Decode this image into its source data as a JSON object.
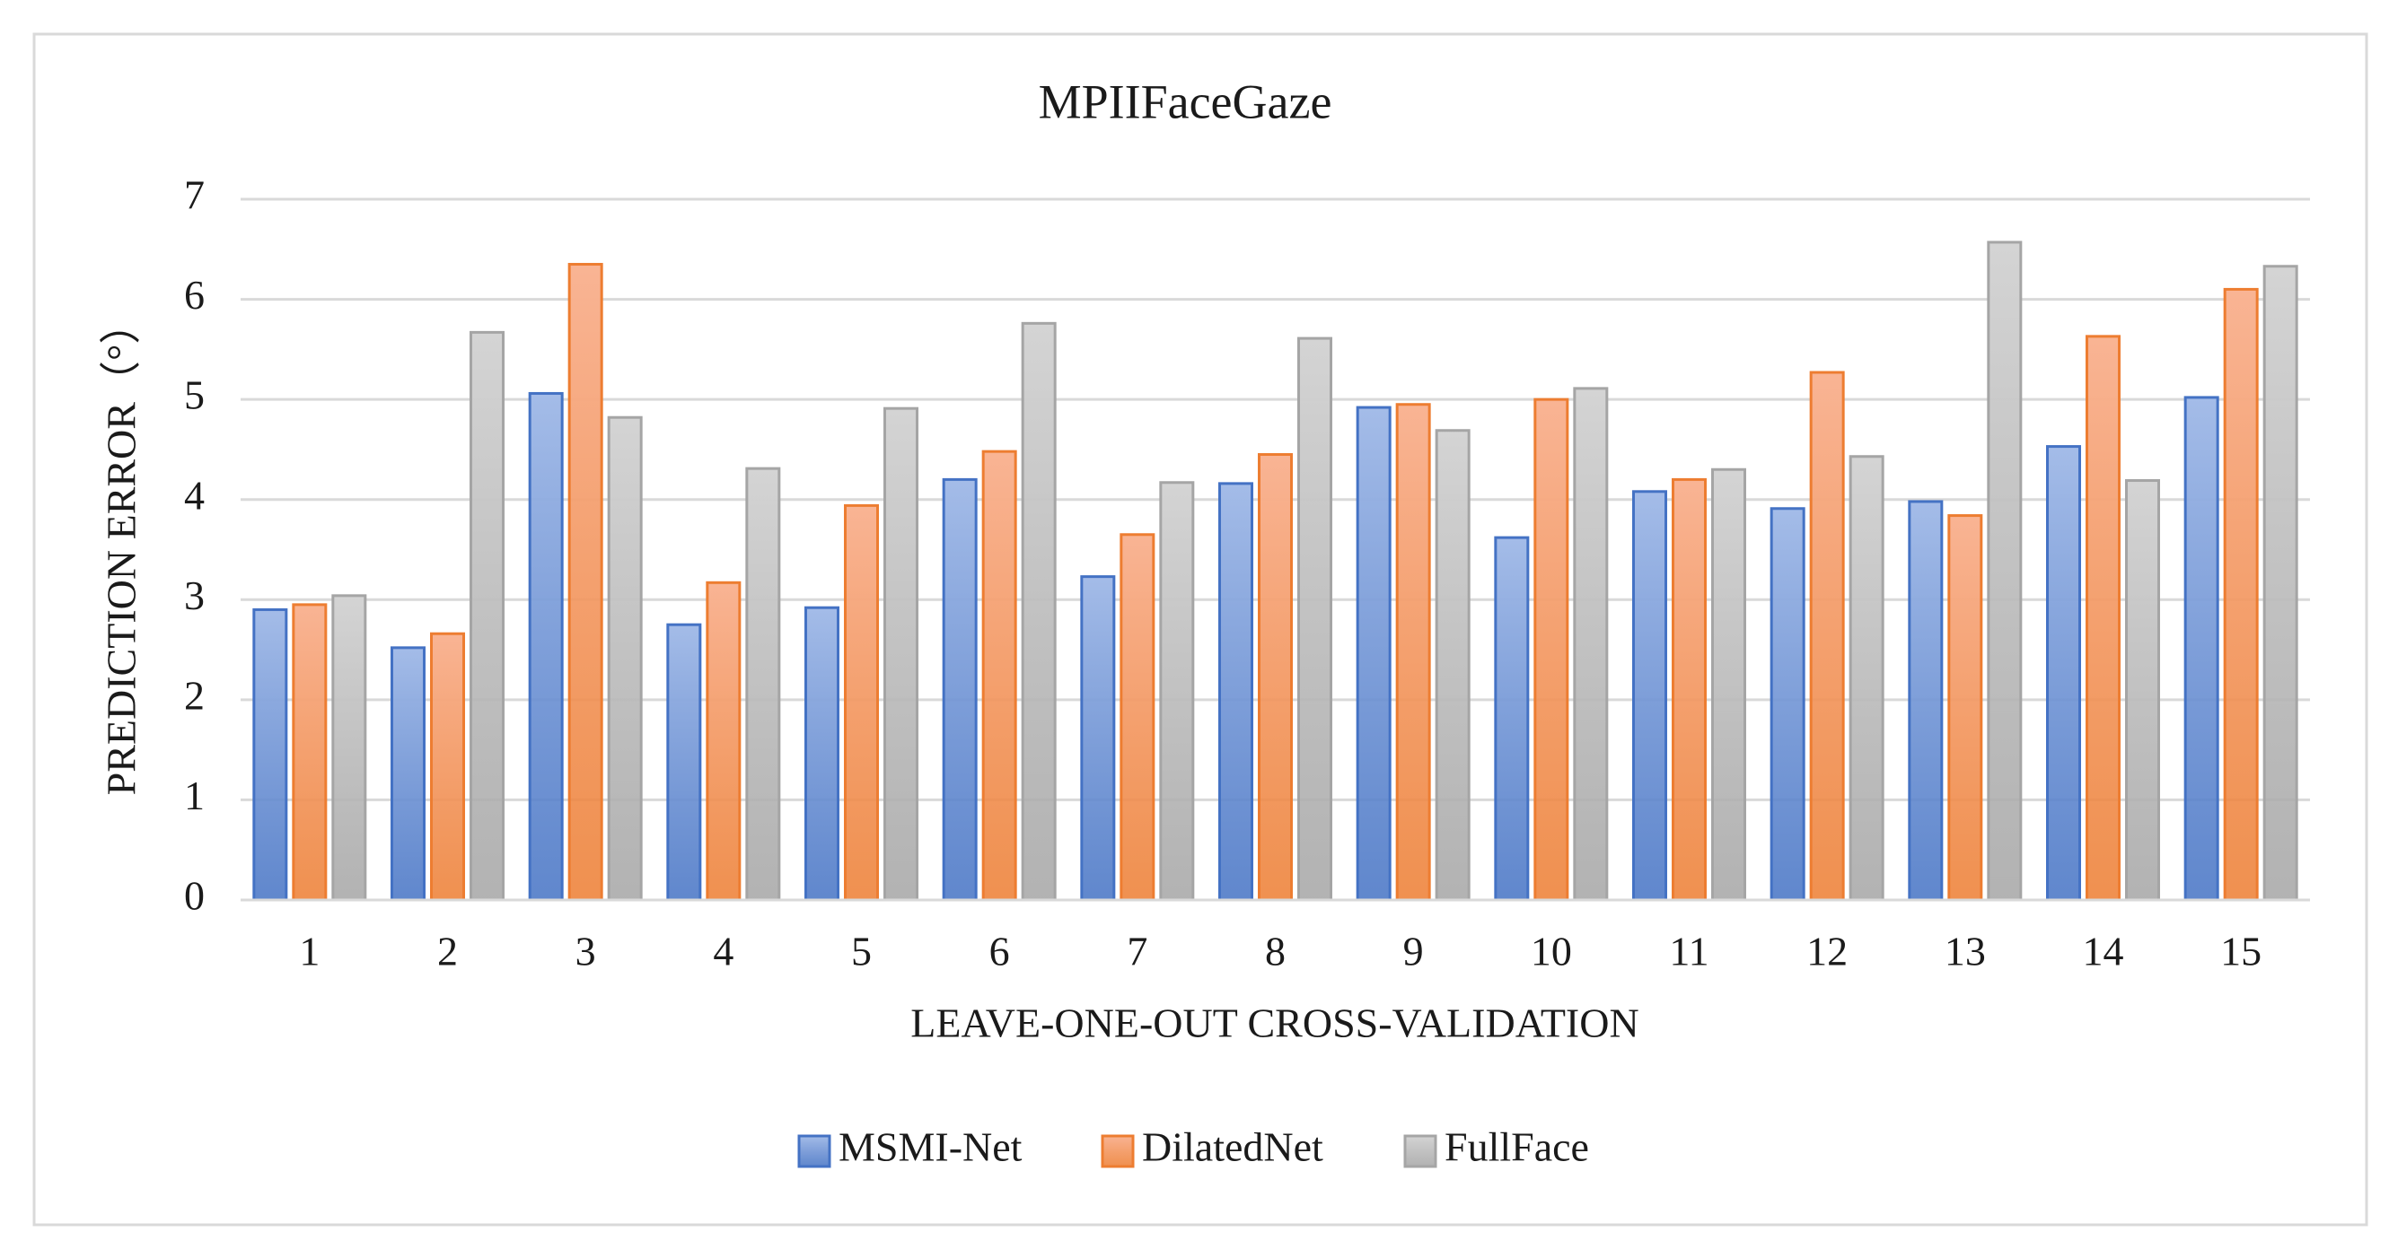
{
  "chart_data": {
    "type": "bar",
    "title": "MPIIFaceGaze",
    "x_label": "LEAVE-ONE-OUT  CROSS-VALIDATION",
    "y_label": "PREDICTION ERROR（°）",
    "categories": [
      "1",
      "2",
      "3",
      "4",
      "5",
      "6",
      "7",
      "8",
      "9",
      "10",
      "11",
      "12",
      "13",
      "14",
      "15"
    ],
    "series": [
      {
        "name": "MSMI-Net",
        "color": "#4472c4",
        "fill": "#a4bce8",
        "values": [
          2.9,
          2.52,
          5.06,
          2.75,
          2.92,
          4.2,
          3.23,
          4.16,
          4.92,
          3.62,
          4.08,
          3.91,
          3.98,
          4.53,
          5.02
        ]
      },
      {
        "name": "DilatedNet",
        "color": "#ed7d31",
        "fill": "#f9b494",
        "values": [
          2.95,
          2.66,
          6.35,
          3.17,
          3.94,
          4.48,
          3.65,
          4.45,
          4.95,
          5.0,
          4.2,
          5.27,
          3.84,
          5.63,
          6.1
        ]
      },
      {
        "name": "FullFace",
        "color": "#a5a5a5",
        "fill": "#d4d4d4",
        "values": [
          3.04,
          5.67,
          4.82,
          4.31,
          4.91,
          5.76,
          4.17,
          5.61,
          4.69,
          5.11,
          4.3,
          4.43,
          6.57,
          4.19,
          6.33
        ]
      }
    ],
    "ylim": [
      0,
      7
    ],
    "yticks": [
      0,
      1,
      2,
      3,
      4,
      5,
      6,
      7
    ],
    "grid": true,
    "legend": "bottom"
  }
}
